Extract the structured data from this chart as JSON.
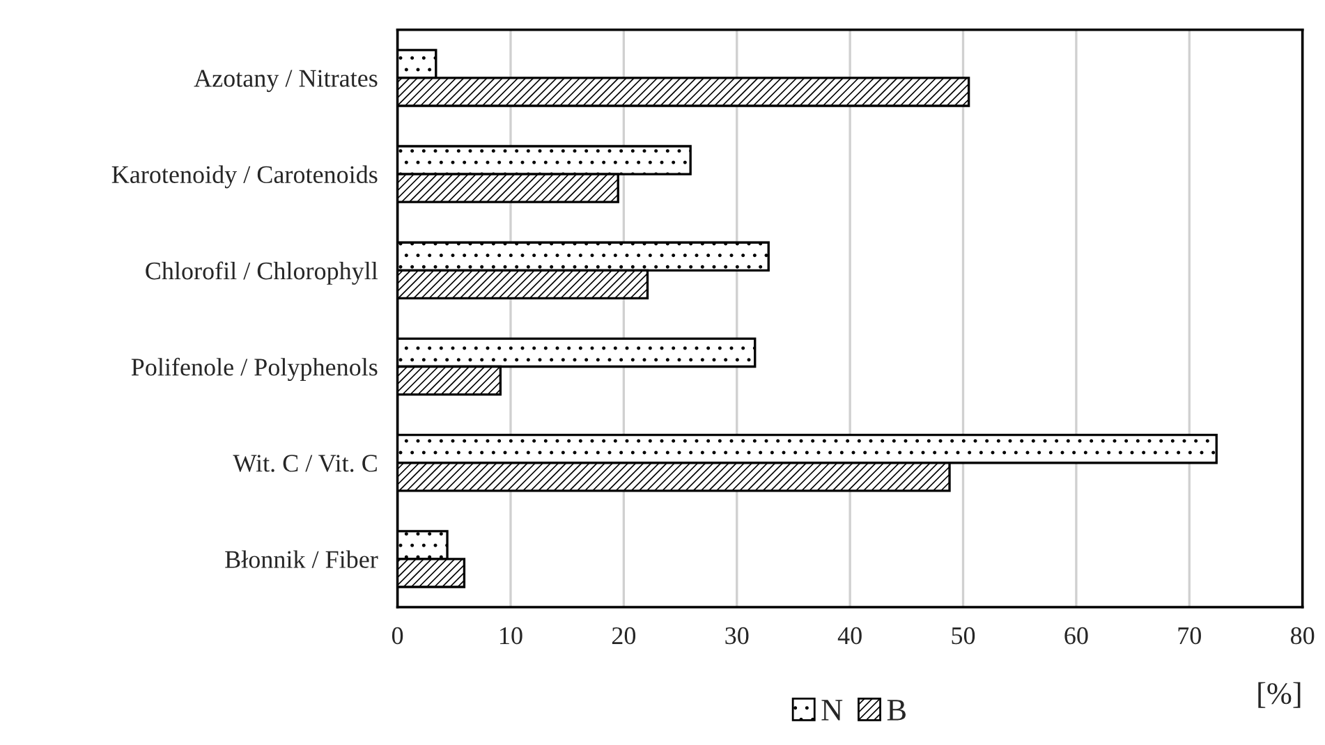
{
  "chart_data": {
    "type": "bar",
    "orientation": "horizontal",
    "xlabel": "[%]",
    "categories": [
      "Azotany / Nitrates",
      "Karotenoidy / Carotenoids",
      "Chlorofil / Chlorophyll",
      "Polifenole / Polyphenols",
      "Wit. C / Vit. C",
      "Błonnik / Fiber"
    ],
    "series": [
      {
        "name": "N",
        "color": "#000000",
        "values": [
          3.4,
          25.9,
          32.8,
          31.6,
          72.4,
          4.4
        ]
      },
      {
        "name": "B",
        "color": "#000000",
        "values": [
          50.5,
          19.5,
          22.1,
          9.1,
          48.8,
          5.9
        ]
      }
    ],
    "xlim": [
      0,
      80
    ],
    "xticks": [
      0,
      10,
      20,
      30,
      40,
      50,
      60,
      70,
      80
    ],
    "grid": "x",
    "legend": "bottom"
  }
}
